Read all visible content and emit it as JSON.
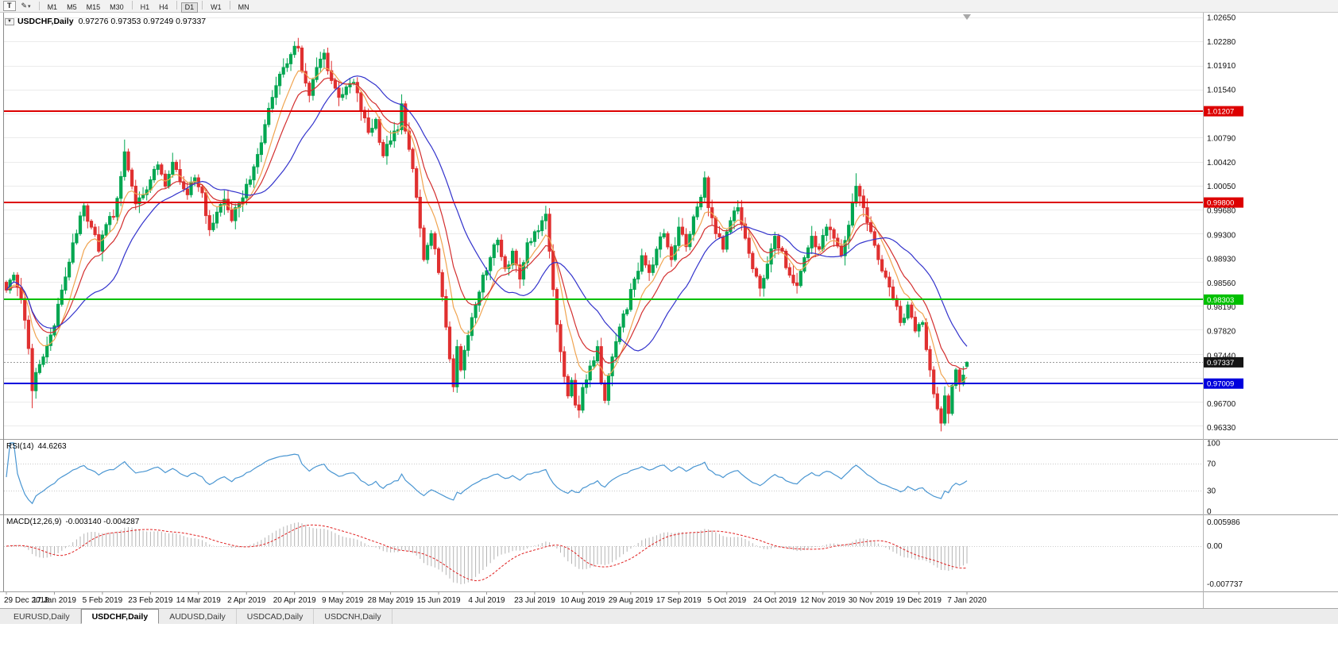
{
  "window": {
    "title": "USDCHF,Daily"
  },
  "toolbar": {
    "tools": [
      {
        "name": "text-tool",
        "label": "T"
      },
      {
        "name": "draw-tool",
        "label": "✎",
        "caret": "▾"
      }
    ],
    "timeframe_groups": [
      [
        "M1",
        "M5",
        "M15",
        "M30"
      ],
      [
        "H1",
        "H4"
      ],
      [
        "D1"
      ],
      [
        "W1"
      ],
      [
        "MN"
      ]
    ],
    "active_timeframe": "D1"
  },
  "chart": {
    "dropdown_glyph": "▼",
    "symbol_label": "USDCHF,Daily",
    "ohlc_text": "0.97276 0.97353 0.97249 0.97337",
    "price_axis": {
      "ticks": [
        "1.02650",
        "1.02280",
        "1.01910",
        "1.01540",
        "1.00790",
        "1.00420",
        "1.00050",
        "0.99680",
        "0.99300",
        "0.98930",
        "0.98560",
        "0.98190",
        "0.97820",
        "0.97440",
        "0.96700",
        "0.96330"
      ]
    },
    "levels": [
      {
        "value": "1.01207",
        "price": 1.01207,
        "color": "#DD0000"
      },
      {
        "value": "0.99800",
        "price": 0.998,
        "color": "#DD0000"
      },
      {
        "value": "0.98303",
        "price": 0.98303,
        "color": "#00C000"
      },
      {
        "value": "0.97009",
        "price": 0.97009,
        "color": "#0000DD"
      }
    ],
    "current_price": {
      "value": "0.97337",
      "price": 0.97337
    },
    "date_axis": [
      "29 Dec 2018",
      "17 Jan 2019",
      "5 Feb 2019",
      "23 Feb 2019",
      "14 Mar 2019",
      "2 Apr 2019",
      "20 Apr 2019",
      "9 May 2019",
      "28 May 2019",
      "15 Jun 2019",
      "4 Jul 2019",
      "23 Jul 2019",
      "10 Aug 2019",
      "29 Aug 2019",
      "17 Sep 2019",
      "5 Oct 2019",
      "24 Oct 2019",
      "12 Nov 2019",
      "30 Nov 2019",
      "19 Dec 2019",
      "7 Jan 2020"
    ]
  },
  "rsi_panel": {
    "label": "RSI(14)",
    "value": "44.6263",
    "axis": [
      "100",
      "70",
      "30",
      "0"
    ],
    "levels": [
      70,
      30
    ]
  },
  "macd_panel": {
    "label": "MACD(12,26,9)",
    "values": "-0.003140 -0.004287",
    "axis_top": "0.005986",
    "axis_zero": "0.00",
    "axis_bottom": "-0.007737"
  },
  "tabs": [
    {
      "label": "EURUSD,Daily",
      "active": false
    },
    {
      "label": "USDCHF,Daily",
      "active": true
    },
    {
      "label": "AUDUSD,Daily",
      "active": false
    },
    {
      "label": "USDCAD,Daily",
      "active": false
    },
    {
      "label": "USDCNH,Daily",
      "active": false
    }
  ],
  "colors": {
    "up": "#00A651",
    "down": "#E03030",
    "ma_fast": "#F0A450",
    "ma_mid": "#D32F2F",
    "ma_slow": "#3333CC",
    "rsi": "#4A96D2",
    "macd_hist": "#B4B4B4",
    "macd_signal": "#E02020",
    "tag_current_bg": "#151515",
    "level_red": "#DD0000",
    "level_green": "#00C000",
    "level_blue": "#0000DD"
  },
  "chart_data": {
    "type": "candlestick",
    "symbol": "USDCHF",
    "timeframe": "Daily",
    "bars": 261,
    "y_axis_range": [
      0.9618,
      1.027
    ],
    "last_bar": {
      "open": 0.97276,
      "high": 0.97353,
      "low": 0.97249,
      "close": 0.97337
    },
    "anchors": [
      [
        0,
        0.9845
      ],
      [
        2,
        0.9868
      ],
      [
        4,
        0.9832
      ],
      [
        6,
        0.9755
      ],
      [
        7,
        0.969
      ],
      [
        8,
        0.9718
      ],
      [
        10,
        0.9742
      ],
      [
        13,
        0.979
      ],
      [
        15,
        0.9845
      ],
      [
        17,
        0.9888
      ],
      [
        19,
        0.9932
      ],
      [
        21,
        0.9975
      ],
      [
        23,
        0.9942
      ],
      [
        25,
        0.9905
      ],
      [
        27,
        0.9946
      ],
      [
        29,
        0.9958
      ],
      [
        31,
        1.002
      ],
      [
        32,
        1.0058
      ],
      [
        33,
        1.003
      ],
      [
        35,
        0.9978
      ],
      [
        37,
        0.9992
      ],
      [
        39,
        1.0015
      ],
      [
        41,
        1.0038
      ],
      [
        43,
        1.0005
      ],
      [
        45,
        1.0042
      ],
      [
        47,
        1.0012
      ],
      [
        49,
        0.9992
      ],
      [
        51,
        1.0018
      ],
      [
        53,
        0.9995
      ],
      [
        55,
        0.9938
      ],
      [
        57,
        0.9965
      ],
      [
        59,
        0.9985
      ],
      [
        61,
        0.9952
      ],
      [
        63,
        0.9978
      ],
      [
        65,
        1.0008
      ],
      [
        67,
        1.0035
      ],
      [
        69,
        1.0072
      ],
      [
        71,
        1.0125
      ],
      [
        73,
        1.016
      ],
      [
        75,
        1.0188
      ],
      [
        77,
        1.0208
      ],
      [
        79,
        1.0218
      ],
      [
        80,
        1.0182
      ],
      [
        82,
        1.0145
      ],
      [
        84,
        1.0188
      ],
      [
        86,
        1.021
      ],
      [
        88,
        1.0168
      ],
      [
        90,
        1.0142
      ],
      [
        92,
        1.0158
      ],
      [
        94,
        1.0165
      ],
      [
        96,
        1.0122
      ],
      [
        98,
        1.0088
      ],
      [
        100,
        1.0108
      ],
      [
        102,
        1.0052
      ],
      [
        104,
        1.0075
      ],
      [
        106,
        1.0092
      ],
      [
        107,
        1.0132
      ],
      [
        109,
        1.0062
      ],
      [
        111,
        0.9988
      ],
      [
        113,
        0.9892
      ],
      [
        115,
        0.9932
      ],
      [
        117,
        0.9872
      ],
      [
        119,
        0.9788
      ],
      [
        121,
        0.9696
      ],
      [
        122,
        0.9758
      ],
      [
        123,
        0.9722
      ],
      [
        125,
        0.9775
      ],
      [
        127,
        0.9822
      ],
      [
        129,
        0.9868
      ],
      [
        131,
        0.9895
      ],
      [
        133,
        0.9922
      ],
      [
        135,
        0.9878
      ],
      [
        137,
        0.9905
      ],
      [
        139,
        0.9862
      ],
      [
        141,
        0.9918
      ],
      [
        143,
        0.9935
      ],
      [
        145,
        0.9952
      ],
      [
        146,
        0.9962
      ],
      [
        147,
        0.9905
      ],
      [
        149,
        0.9792
      ],
      [
        151,
        0.9712
      ],
      [
        152,
        0.9682
      ],
      [
        153,
        0.9706
      ],
      [
        154,
        0.9668
      ],
      [
        155,
        0.966
      ],
      [
        156,
        0.9695
      ],
      [
        158,
        0.9728
      ],
      [
        160,
        0.9758
      ],
      [
        161,
        0.9702
      ],
      [
        162,
        0.9675
      ],
      [
        164,
        0.9742
      ],
      [
        166,
        0.9788
      ],
      [
        168,
        0.9815
      ],
      [
        170,
        0.9862
      ],
      [
        172,
        0.9898
      ],
      [
        174,
        0.9872
      ],
      [
        176,
        0.9908
      ],
      [
        178,
        0.9932
      ],
      [
        180,
        0.9892
      ],
      [
        182,
        0.9942
      ],
      [
        184,
        0.9912
      ],
      [
        186,
        0.9958
      ],
      [
        188,
        0.9988
      ],
      [
        189,
        1.0018
      ],
      [
        190,
        0.9972
      ],
      [
        192,
        0.9932
      ],
      [
        194,
        0.9908
      ],
      [
        196,
        0.9952
      ],
      [
        198,
        0.9972
      ],
      [
        200,
        0.9925
      ],
      [
        202,
        0.9878
      ],
      [
        204,
        0.9848
      ],
      [
        206,
        0.9885
      ],
      [
        208,
        0.9928
      ],
      [
        210,
        0.9905
      ],
      [
        212,
        0.9868
      ],
      [
        214,
        0.9852
      ],
      [
        216,
        0.9895
      ],
      [
        218,
        0.9928
      ],
      [
        220,
        0.9908
      ],
      [
        222,
        0.9942
      ],
      [
        224,
        0.9925
      ],
      [
        226,
        0.9898
      ],
      [
        228,
        0.9945
      ],
      [
        230,
        1.0005
      ],
      [
        232,
        0.9972
      ],
      [
        234,
        0.9935
      ],
      [
        236,
        0.9892
      ],
      [
        238,
        0.9865
      ],
      [
        240,
        0.9832
      ],
      [
        242,
        0.9795
      ],
      [
        244,
        0.9822
      ],
      [
        246,
        0.9782
      ],
      [
        248,
        0.9795
      ],
      [
        250,
        0.9722
      ],
      [
        252,
        0.9662
      ],
      [
        253,
        0.964
      ],
      [
        254,
        0.9682
      ],
      [
        255,
        0.9655
      ],
      [
        256,
        0.9698
      ],
      [
        257,
        0.9722
      ],
      [
        258,
        0.97
      ],
      [
        259,
        0.9714
      ],
      [
        260,
        0.97337
      ]
    ],
    "wick_extremes": {
      "7": 0.9663,
      "32": 1.0077,
      "79": 1.0226,
      "121": 0.9693,
      "146": 0.9975,
      "155": 0.9648,
      "189": 1.0028,
      "230": 1.0025,
      "253": 0.9631
    },
    "moving_averages": [
      {
        "name": "fast",
        "type": "ema",
        "period": 8,
        "color": "#F0A450"
      },
      {
        "name": "mid",
        "type": "ema",
        "period": 14,
        "color": "#D32F2F"
      },
      {
        "name": "slow",
        "type": "sma",
        "period": 24,
        "color": "#3333CC"
      }
    ],
    "indicators": [
      {
        "name": "RSI",
        "period": 14,
        "current_value": 44.6263
      },
      {
        "name": "MACD",
        "fast_ema": 12,
        "slow_ema": 26,
        "signal": 9,
        "current_values": [
          -0.00314,
          -0.004287
        ]
      }
    ],
    "horizontal_levels": [
      1.01207,
      0.998,
      0.98303,
      0.97009
    ]
  }
}
